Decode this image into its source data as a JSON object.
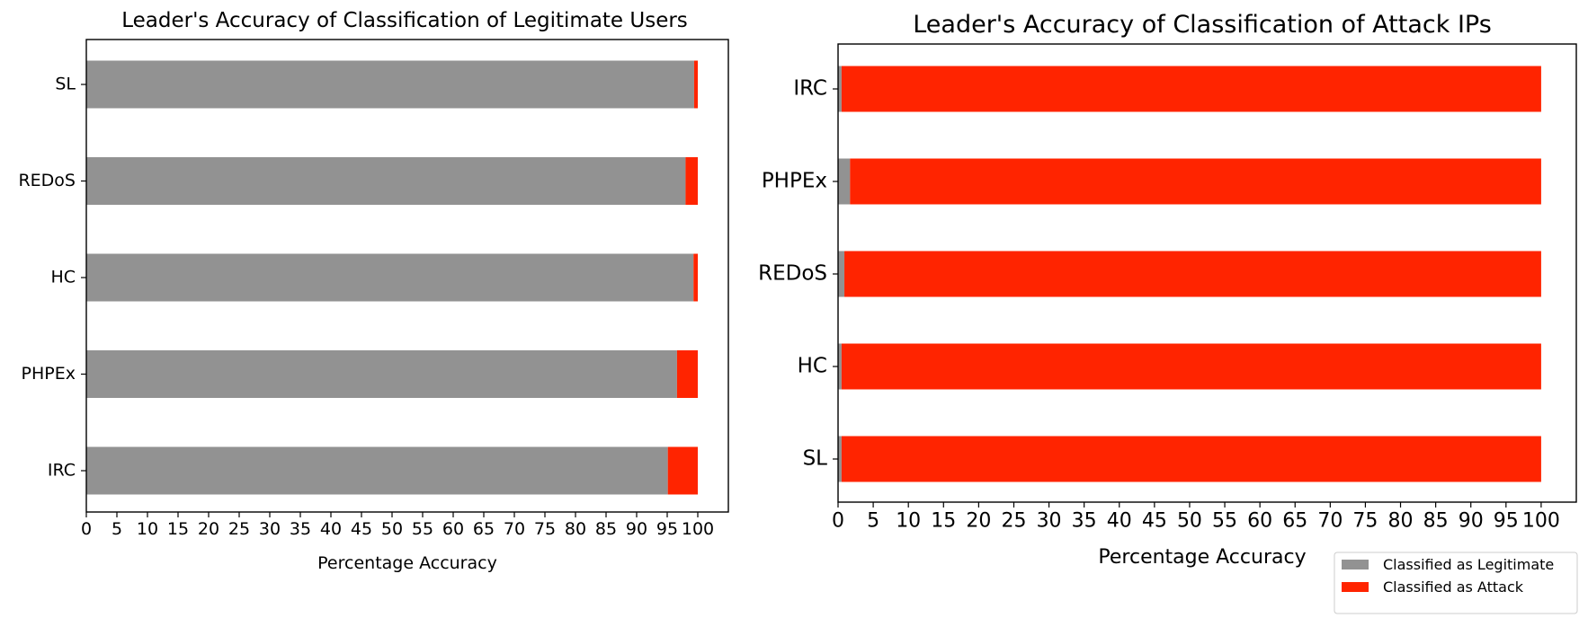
{
  "chart_data": [
    {
      "type": "bar",
      "orientation": "horizontal",
      "stacked": true,
      "title": "Leader's Accuracy of Classification of Legitimate Users",
      "xlabel": "Percentage Accuracy",
      "ylabel": "",
      "categories": [
        "SL",
        "REDoS",
        "HC",
        "PHPEx",
        "IRC"
      ],
      "xlim": [
        0,
        105
      ],
      "xticks": [
        0,
        5,
        10,
        15,
        20,
        25,
        30,
        35,
        40,
        45,
        50,
        55,
        60,
        65,
        70,
        75,
        80,
        85,
        90,
        95,
        100
      ],
      "series": [
        {
          "name": "Classified as Legitimate",
          "color": "#929292",
          "values": [
            99.4,
            98.0,
            99.3,
            96.6,
            95.1
          ]
        },
        {
          "name": "Classified as Attack",
          "color": "#ff2400",
          "values": [
            0.6,
            2.0,
            0.7,
            3.4,
            4.9
          ]
        }
      ],
      "grid": false,
      "legend": "none"
    },
    {
      "type": "bar",
      "orientation": "horizontal",
      "stacked": true,
      "title": "Leader's Accuracy of Classification of Attack IPs",
      "xlabel": "Percentage Accuracy",
      "ylabel": "",
      "categories": [
        "IRC",
        "PHPEx",
        "REDoS",
        "HC",
        "SL"
      ],
      "xlim": [
        0,
        105
      ],
      "xticks": [
        0,
        5,
        10,
        15,
        20,
        25,
        30,
        35,
        40,
        45,
        50,
        55,
        60,
        65,
        70,
        75,
        80,
        85,
        90,
        95,
        100
      ],
      "series": [
        {
          "name": "Classified as Legitimate",
          "color": "#929292",
          "values": [
            0.5,
            1.7,
            0.9,
            0.5,
            0.5
          ]
        },
        {
          "name": "Classified as Attack",
          "color": "#ff2400",
          "values": [
            99.5,
            98.3,
            99.1,
            99.5,
            99.5
          ]
        }
      ],
      "grid": false,
      "legend": "lower-right"
    }
  ],
  "legend": {
    "items": [
      {
        "label": "Classified as Legitimate",
        "color": "#929292"
      },
      {
        "label": "Classified as Attack",
        "color": "#ff2400"
      }
    ]
  }
}
